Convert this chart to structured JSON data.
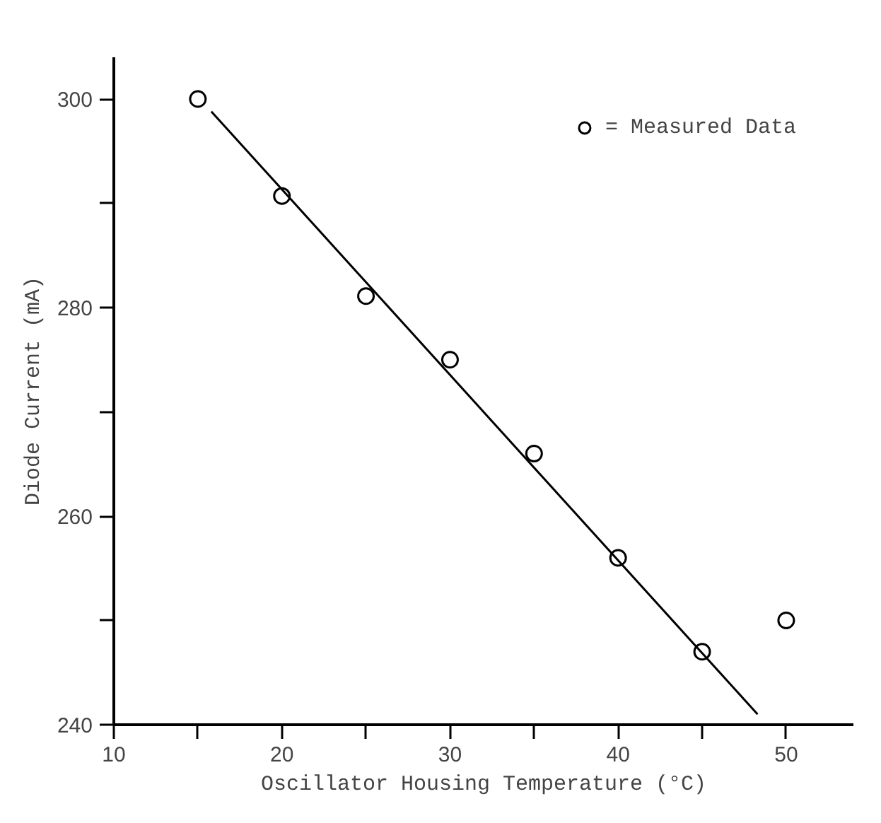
{
  "chart_data": {
    "type": "scatter",
    "xlabel": "Oscillator Housing Temperature (°C)",
    "ylabel": "Diode Current (mA)",
    "xlim": [
      10,
      54
    ],
    "ylim": [
      240,
      304
    ],
    "xticks": [
      10,
      {
        "value": 15,
        "label": null
      },
      20,
      {
        "value": 25,
        "label": null
      },
      30,
      {
        "value": 35,
        "label": null
      },
      40,
      {
        "value": 45,
        "label": null
      },
      50
    ],
    "yticks": [
      240,
      {
        "value": 250,
        "label": null
      },
      260,
      {
        "value": 270,
        "label": null
      },
      280,
      {
        "value": 290,
        "label": null
      },
      300
    ],
    "grid": false,
    "legend": "top right",
    "series": [
      {
        "name": "= Measured Data",
        "color": "#000000",
        "marker": "circle",
        "x": [
          15,
          20,
          25,
          30,
          35,
          40,
          45,
          50
        ],
        "values": [
          300,
          290.7,
          281.1,
          275,
          266,
          256,
          247,
          250
        ]
      },
      {
        "type": "line",
        "color": "#000000",
        "x": [
          15.8,
          48.3
        ],
        "values": [
          298.8,
          241
        ]
      }
    ]
  }
}
